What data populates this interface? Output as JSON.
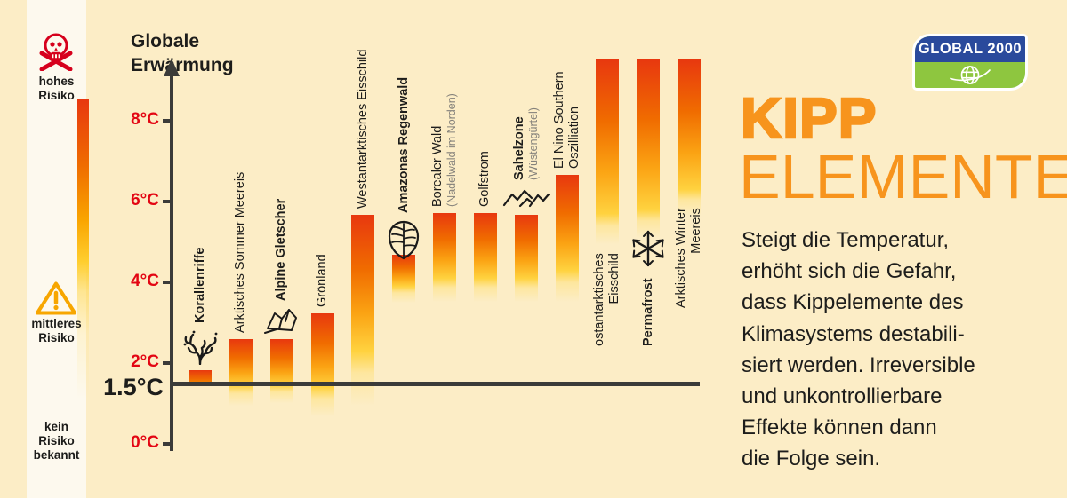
{
  "colors": {
    "background": "#fcedc6",
    "panel": "#fdf9ee",
    "bar_red": "#e8380f",
    "bar_orange": "#f9a400",
    "bar_yellow": "#ffd23f",
    "axis_gray": "#3b3b39",
    "tick_red": "#e30613",
    "title_orange": "#f7941d",
    "logo_blue": "#2a4a9c",
    "logo_green": "#8ec63f",
    "text_black": "#1d1d1b"
  },
  "risk_legend": {
    "high": {
      "icon": "skull-crossbones-icon",
      "label": "hohes\nRisiko"
    },
    "medium": {
      "icon": "warning-triangle-icon",
      "label": "mittleres\nRisiko"
    },
    "none": {
      "label": "kein\nRisiko\nbekannt"
    }
  },
  "logo": {
    "text": "GLOBAL 2000",
    "icon": "globe-icon"
  },
  "title": {
    "line1": "KIPP",
    "line2": "ELEMENTE"
  },
  "paragraph": {
    "lines": [
      "Steigt die Temperatur,",
      "erhöht sich die Gefahr,",
      "dass Kippelemente des",
      "Klimasystems destabili-",
      "siert werden. Irreversible",
      "und unkontrollierbare",
      "Effekte können dann",
      "die Folge sein."
    ]
  },
  "chart_data": {
    "type": "bar",
    "axis_title": "Globale\nErwärmung",
    "unit": "°C",
    "ylim": [
      0,
      9.5
    ],
    "yticks": [
      {
        "value": 0,
        "label": "0°C"
      },
      {
        "value": 2,
        "label": "2°C"
      },
      {
        "value": 4,
        "label": "4°C"
      },
      {
        "value": 6,
        "label": "6°C"
      },
      {
        "value": 8,
        "label": "8°C"
      }
    ],
    "baseline": {
      "value": 1.5,
      "label": "1.5°C"
    },
    "bar_note": "from = lower fade end (°C), solid = where fade begins, to = bar top (°C); 9.5 means bar runs off the scale top",
    "bars": [
      {
        "name": "korallenriffe",
        "lines": [
          "Korallenriffe"
        ],
        "bold": true,
        "icon": "coral-icon",
        "from": 1.42,
        "solid": 1.42,
        "to": 1.83
      },
      {
        "name": "arktisches-sommer-meereis",
        "lines": [
          "Arktisches Sommer Meereis"
        ],
        "bold": false,
        "from": 0.95,
        "solid": 1.45,
        "to": 2.6
      },
      {
        "name": "alpine-gletscher",
        "lines": [
          "Alpine Gletscher"
        ],
        "bold": true,
        "icon": "glacier-icon",
        "from": 1.0,
        "solid": 1.45,
        "to": 2.6
      },
      {
        "name": "groenland",
        "lines": [
          "Grönland"
        ],
        "bold": false,
        "from": 0.68,
        "solid": 1.4,
        "to": 3.22
      },
      {
        "name": "westantarktisches-eisschild",
        "lines": [
          "Westantarktisches Eisschild"
        ],
        "bold": false,
        "from": 0.95,
        "solid": 2.3,
        "to": 5.67
      },
      {
        "name": "amazonas-regenwald",
        "lines": [
          "Amazonas Regenwald"
        ],
        "bold": true,
        "icon": "leaf-icon",
        "icon_dy": 12,
        "from": 3.5,
        "solid": 3.9,
        "to": 4.67
      },
      {
        "name": "borealer-wald",
        "lines": [
          "Borealer Wald"
        ],
        "sub": "(Nadelwald im Norden)",
        "bold": false,
        "from": 3.52,
        "solid": 4.1,
        "to": 5.7
      },
      {
        "name": "golfstrom",
        "lines": [
          "Golfstrom"
        ],
        "bold": false,
        "from": 3.52,
        "solid": 4.1,
        "to": 5.7
      },
      {
        "name": "sahelzone",
        "lines": [
          "Sahelzone"
        ],
        "sub": "(Wüstengürtel)",
        "bold": true,
        "icon": "sahel-icon",
        "from": 3.52,
        "solid": 4.1,
        "to": 5.67
      },
      {
        "name": "el-nino-southern-oszilliation",
        "lines": [
          "El Nino Southern",
          "Oszilliation"
        ],
        "bold": false,
        "from": 3.52,
        "solid": 4.3,
        "to": 6.65
      },
      {
        "name": "ostantarktisches-eisschild",
        "lines": [
          "ostantarktisches",
          "Eisschild"
        ],
        "bold": false,
        "align": "end",
        "label_bottom_temp": 2.42,
        "from": 4.95,
        "solid": 5.7,
        "to": 9.5
      },
      {
        "name": "permafrost",
        "lines": [
          "Permafrost"
        ],
        "bold": true,
        "icon": "snowflake-icon",
        "icon_pos": "above",
        "label_bottom_temp": 2.42,
        "from": 5.1,
        "solid": 5.8,
        "to": 9.5
      },
      {
        "name": "arktisches-winter-meereis",
        "lines": [
          "Arktisches Winter",
          "Meereis"
        ],
        "bold": false,
        "align": "end",
        "label_bottom_temp": 3.36,
        "from": 5.65,
        "solid": 6.3,
        "to": 9.5
      }
    ]
  }
}
